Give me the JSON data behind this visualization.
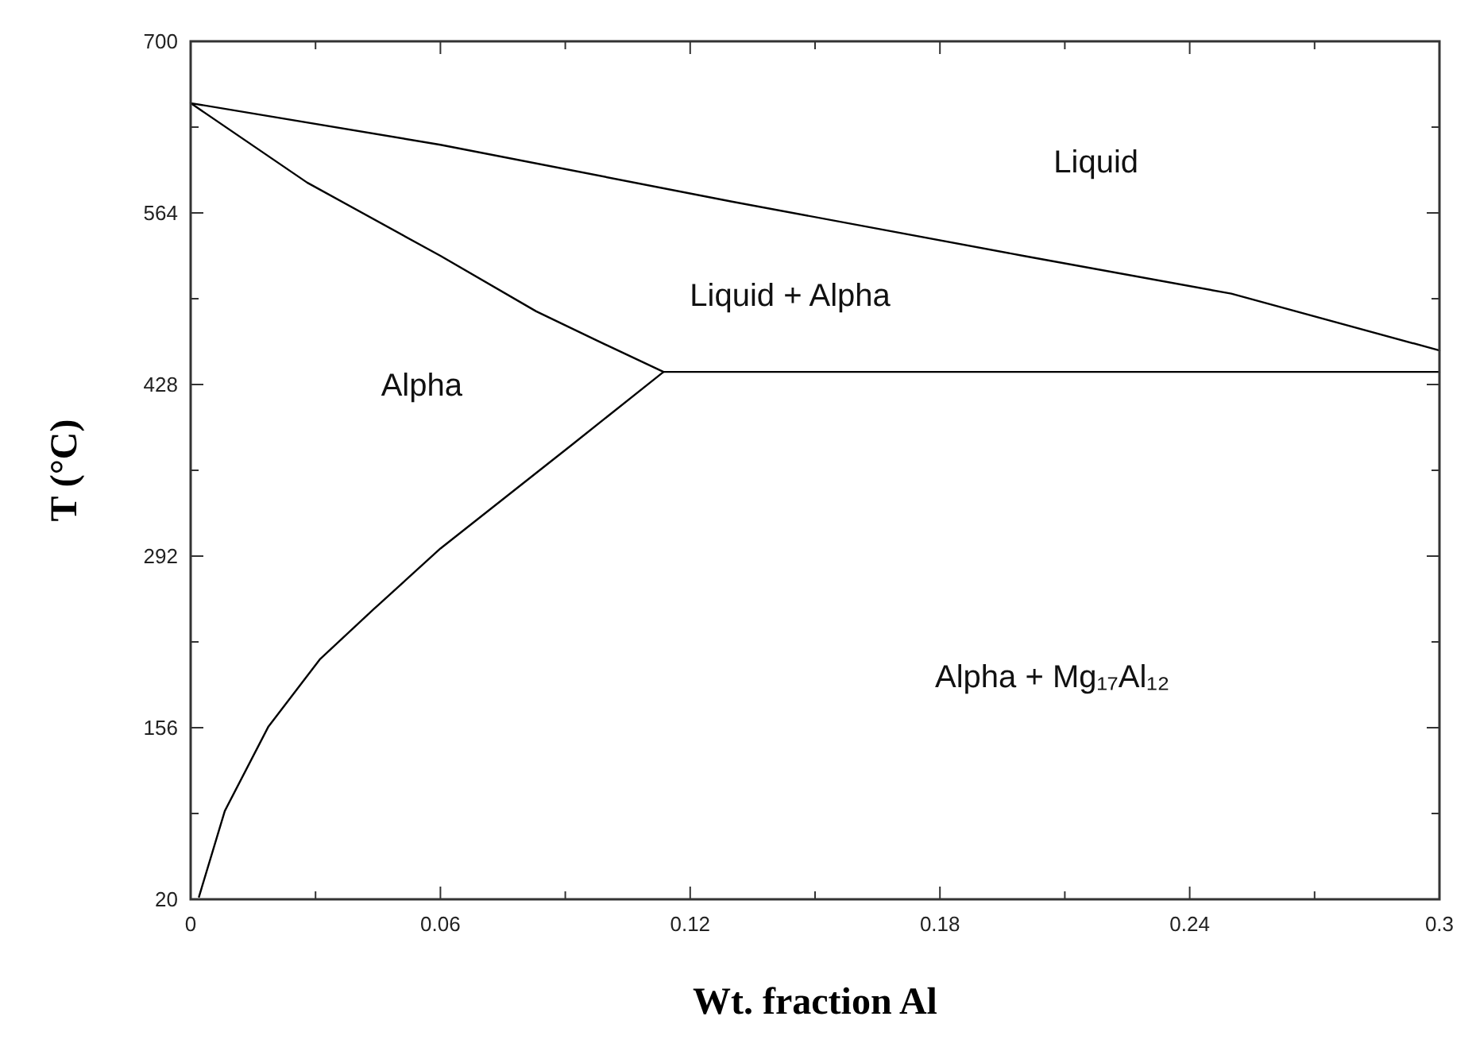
{
  "chart_data": {
    "type": "line",
    "xlabel": "Wt. fraction Al",
    "ylabel": "T (°C)",
    "xlim": [
      0,
      0.3
    ],
    "ylim": [
      20,
      700
    ],
    "xticks": [
      0,
      {
        "value": 0.03,
        "label": null
      },
      0.06,
      {
        "value": 0.09,
        "label": null
      },
      0.12,
      {
        "value": 0.15,
        "label": null
      },
      0.18,
      {
        "value": 0.21,
        "label": null
      },
      0.24,
      {
        "value": 0.27,
        "label": null
      },
      0.3
    ],
    "yticks": [
      20,
      {
        "value": 88,
        "label": null
      },
      156,
      {
        "value": 224,
        "label": null
      },
      292,
      {
        "value": 360,
        "label": null
      },
      428,
      {
        "value": 496,
        "label": null
      },
      564,
      {
        "value": 632,
        "label": null
      },
      700
    ],
    "grid": false,
    "marker": "none",
    "line_style": "solid",
    "series": [
      {
        "color": "#000000",
        "x": [
          0.3,
          0.25,
          0.2,
          0.13,
          0.06,
          0,
          0.028,
          0.06,
          0.083,
          0.0975,
          0.1136
        ],
        "values": [
          455,
          500,
          530,
          573,
          618,
          651,
          588,
          530,
          486,
          463,
          438
        ]
      },
      {
        "color": "#000000",
        "x": [
          0.002,
          0.0082,
          0.0187,
          0.031,
          0.044,
          0.06,
          0.0915,
          0.1136,
          0.3
        ],
        "values": [
          22,
          90,
          157,
          210,
          250,
          298,
          380,
          438,
          438
        ]
      }
    ],
    "annotations": [
      "Liquid",
      "Liquid + Alpha",
      "Alpha",
      "Alpha + Mg₁₇Al₁₂"
    ]
  }
}
